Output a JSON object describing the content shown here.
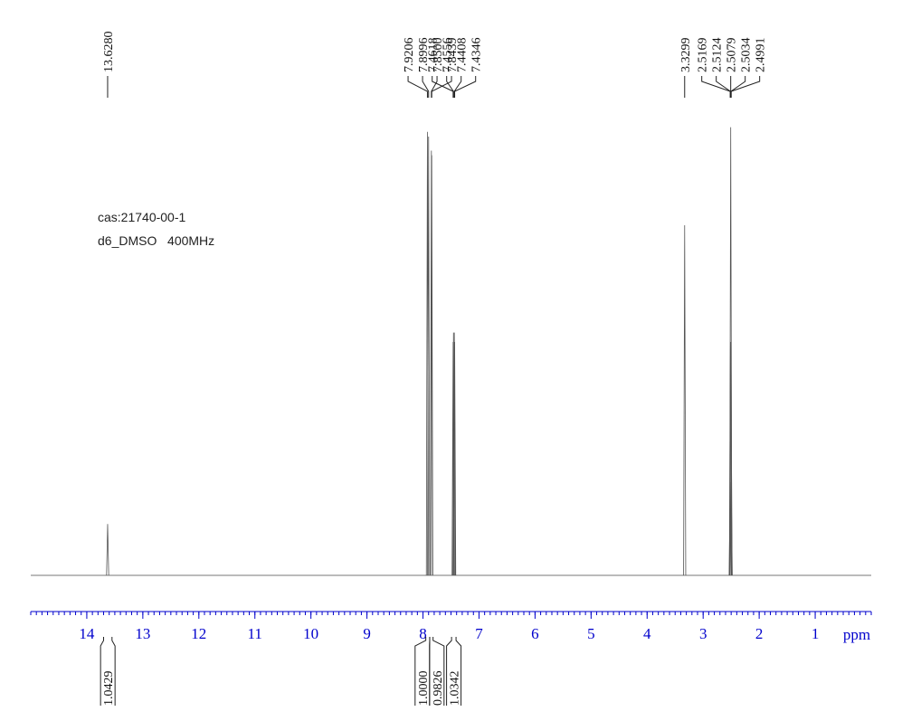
{
  "chart_data": {
    "type": "nmr",
    "annotations": [
      "cas:21740-00-1",
      "d6_DMSO   400MHz"
    ],
    "xlabel": "ppm",
    "xlim": [
      15,
      0
    ],
    "xticks": [
      14,
      13,
      12,
      11,
      10,
      9,
      8,
      7,
      6,
      5,
      4,
      3,
      2,
      1
    ],
    "minor_ticks": true,
    "ylim": [
      0,
      100
    ],
    "axis_color": "#0000cc",
    "color": "#555555",
    "peaks": {
      "x": [
        {
          "value": 13.628,
          "label": "13.6280"
        },
        {
          "value": 7.9206,
          "label": "7.9206"
        },
        {
          "value": 7.8996,
          "label": "7.8996"
        },
        {
          "value": 7.85,
          "label": "7.8500"
        },
        {
          "value": 7.8439,
          "label": "7.8439"
        },
        {
          "value": 7.4618,
          "label": "7.4618"
        },
        {
          "value": 7.4556,
          "label": "7.4556"
        },
        {
          "value": 7.4408,
          "label": "7.4408"
        },
        {
          "value": 7.4346,
          "label": "7.4346"
        },
        {
          "value": 3.3299,
          "label": "3.3299"
        },
        {
          "value": 2.5169,
          "label": "2.5169"
        },
        {
          "value": 2.5124,
          "label": "2.5124"
        },
        {
          "value": 2.5079,
          "label": "2.5079"
        },
        {
          "value": 2.5034,
          "label": "2.5034"
        },
        {
          "value": 2.4991,
          "label": "2.4991"
        }
      ],
      "heights": [
        11,
        95,
        94,
        91,
        90,
        50,
        52,
        52,
        50,
        75,
        20,
        50,
        96,
        50,
        20
      ]
    },
    "integrals": {
      "ranges": [
        [
          13.7,
          13.55
        ],
        [
          7.95,
          7.88
        ],
        [
          7.88,
          7.82
        ],
        [
          7.49,
          7.41
        ]
      ],
      "values": [
        1.0429,
        1,
        0.9826,
        1.0342
      ],
      "value_labels": [
        "1.0429",
        "1.0000",
        "0.9826",
        "1.0342"
      ]
    }
  }
}
